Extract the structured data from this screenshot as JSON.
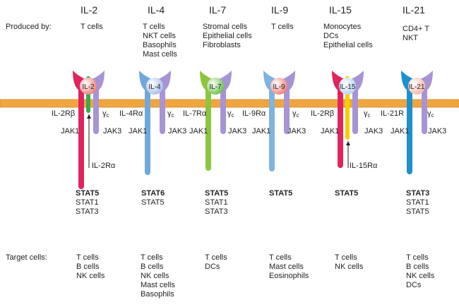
{
  "row_labels": {
    "produced_by": "Produced by:",
    "target_cells": "Target cells:"
  },
  "columns": [
    {
      "cytokine": "IL-2",
      "produced_by": [
        "T cells"
      ],
      "chains": {
        "left": "IL-2Rβ",
        "right_greek": "γ",
        "right_sub": "c",
        "bottom": "IL-2Rα"
      },
      "jaks": [
        "JAK1",
        "JAK3"
      ],
      "stats": [
        "STAT5",
        "STAT1",
        "STAT3"
      ],
      "targets": [
        "T cells",
        "B cells",
        "NK cells"
      ],
      "colors": {
        "ligand": "#f27f7a",
        "specific_chain": "#e0245e",
        "alpha_chain": "#3aaa4a"
      }
    },
    {
      "cytokine": "IL-4",
      "produced_by": [
        "T cells",
        "NKT cells",
        "Basophils",
        "Mast cells"
      ],
      "chains": {
        "left": "IL-4Rα",
        "right_greek": "γ",
        "right_sub": "c"
      },
      "jaks": [
        "JAK1",
        "JAK3"
      ],
      "stats": [
        "STAT6",
        "STAT5"
      ],
      "targets": [
        "T cells",
        "B cells",
        "NK cells",
        "Mast cells",
        "Basophils"
      ],
      "colors": {
        "ligand": "#a9bde8",
        "specific_chain": "#6fa8dc"
      }
    },
    {
      "cytokine": "IL-7",
      "produced_by": [
        "Stromal cells",
        "Epithelial cells",
        "Fibroblasts"
      ],
      "chains": {
        "left": "IL-7Rα",
        "right_greek": "γ",
        "right_sub": "c"
      },
      "jaks": [
        "JAK1",
        "JAK3"
      ],
      "stats": [
        "STAT5",
        "STAT1",
        "STAT3"
      ],
      "targets": [
        "T cells",
        "DCs"
      ],
      "colors": {
        "ligand": "#6cc24a",
        "specific_chain": "#8cc63f"
      }
    },
    {
      "cytokine": "IL-9",
      "produced_by": [
        "T cells"
      ],
      "chains": {
        "left": "IL-9Rα",
        "right_greek": "γ",
        "right_sub": "c"
      },
      "jaks": [
        "JAK1",
        "JAK3"
      ],
      "stats": [
        "STAT5"
      ],
      "targets": [
        "T cells",
        "Mast cells",
        "Eosinophils"
      ],
      "colors": {
        "ligand": "#f27f7a",
        "specific_chain": "#7fb3e0"
      }
    },
    {
      "cytokine": "IL-15",
      "produced_by": [
        "Monocytes",
        "DCs",
        "Epithelial cells"
      ],
      "chains": {
        "left": "IL-2Rβ",
        "right_greek": "γ",
        "right_sub": "c",
        "bottom": "IL-15Rα"
      },
      "jaks": [
        "JAK1",
        "JAK3"
      ],
      "stats": [
        "STAT5"
      ],
      "targets": [
        "T cells",
        "NK cells"
      ],
      "colors": {
        "ligand": "#b9d3f0",
        "specific_chain": "#e0245e",
        "alpha_chain": "#f5d000"
      }
    },
    {
      "cytokine": "IL-21",
      "produced_by": [
        "CD4+ T",
        "NKT"
      ],
      "chains": {
        "left": "IL-21R",
        "right_greek": "γ",
        "right_sub": "c"
      },
      "jaks": [
        "JAK1",
        "JAK3"
      ],
      "stats": [
        "STAT3",
        "STAT1",
        "STAT5"
      ],
      "targets": [
        "T cells",
        "B cells",
        "NK cells",
        "DCs"
      ],
      "colors": {
        "ligand": "#f7b8a8",
        "specific_chain": "#1e8fcf"
      }
    }
  ],
  "colors": {
    "membrane": "#f0a640",
    "membrane_edge": "#d48a20",
    "gamma_chain": "#a794d4",
    "text": "#222222"
  }
}
